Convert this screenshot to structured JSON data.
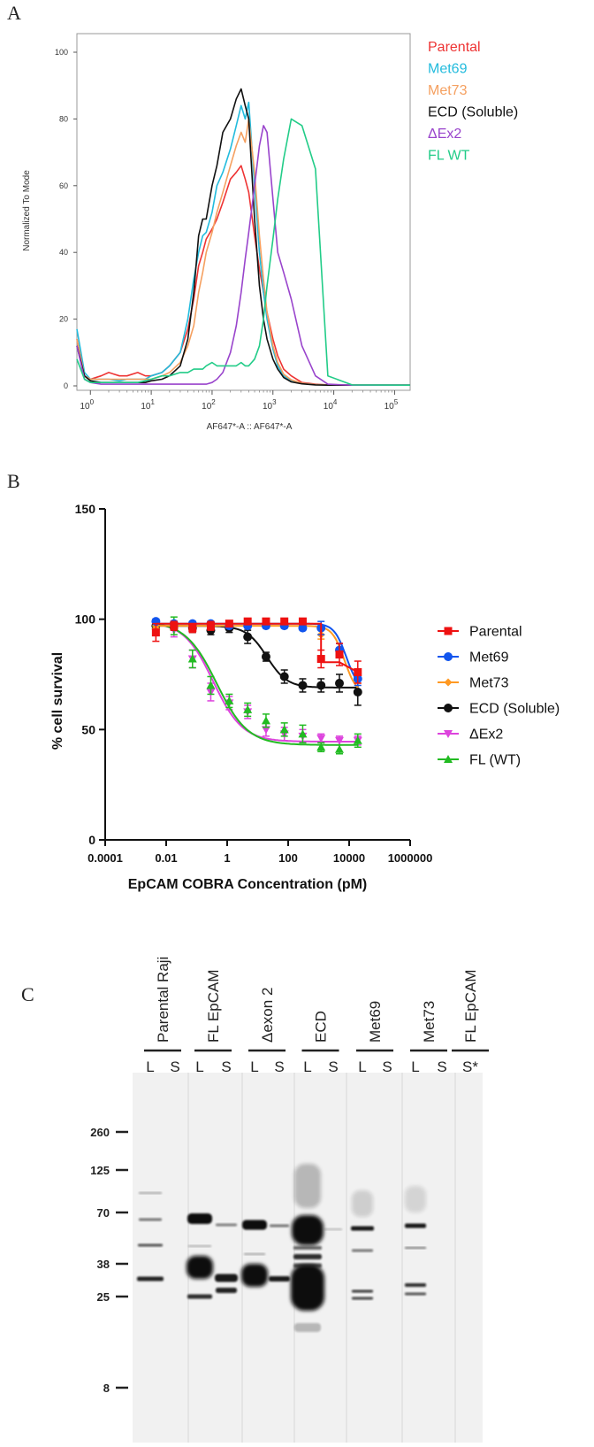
{
  "panel_labels": {
    "a": "A",
    "b": "B",
    "c": "C"
  },
  "chart_data": [
    {
      "type": "line",
      "panel": "A",
      "title": "",
      "xlabel": "AF647*-A :: AF647*-A",
      "ylabel": "Normalized To Mode",
      "xscale": "log",
      "xlim": [
        0.6,
        180000
      ],
      "ylim": [
        0,
        105
      ],
      "xticks": [
        {
          "base": "10",
          "exp": "0",
          "value": 1
        },
        {
          "base": "10",
          "exp": "1",
          "value": 10
        },
        {
          "base": "10",
          "exp": "2",
          "value": 100
        },
        {
          "base": "10",
          "exp": "3",
          "value": 1000
        },
        {
          "base": "10",
          "exp": "4",
          "value": 10000
        },
        {
          "base": "10",
          "exp": "5",
          "value": 100000
        }
      ],
      "yticks": [
        "0",
        "20",
        "40",
        "60",
        "80",
        "100"
      ],
      "legend_position": "right",
      "series": [
        {
          "name": "Parental",
          "color": "#ee3333",
          "x": [
            0.6,
            0.8,
            1,
            1.5,
            2,
            3,
            4,
            6,
            8,
            10,
            15,
            20,
            30,
            40,
            50,
            60,
            70,
            80,
            100,
            120,
            150,
            200,
            250,
            300,
            350,
            400,
            500,
            600,
            700,
            800,
            1000,
            1200,
            1500,
            2000,
            3000,
            5000,
            8000,
            20000,
            180000
          ],
          "y": [
            14,
            3,
            2,
            3,
            4,
            3,
            3,
            4,
            3,
            3,
            4,
            6,
            10,
            17,
            26,
            36,
            40,
            44,
            47,
            50,
            55,
            62,
            64,
            66,
            62,
            58,
            45,
            35,
            28,
            22,
            14,
            9,
            5,
            3,
            1,
            0.5,
            0.3,
            0.2,
            0.2
          ]
        },
        {
          "name": "Met69",
          "color": "#22bbdd",
          "x": [
            0.6,
            0.8,
            1,
            1.5,
            2,
            3,
            4,
            6,
            8,
            10,
            15,
            20,
            30,
            40,
            50,
            60,
            70,
            80,
            100,
            120,
            150,
            200,
            250,
            300,
            350,
            400,
            500,
            600,
            700,
            800,
            1000,
            1200,
            1500,
            2000,
            3000,
            5000,
            8000,
            20000,
            180000
          ],
          "y": [
            17,
            4,
            2,
            2,
            2,
            1.5,
            2,
            2,
            2,
            3,
            4,
            6,
            10,
            20,
            32,
            40,
            45,
            46,
            52,
            60,
            64,
            71,
            78,
            84,
            80,
            85,
            60,
            40,
            28,
            20,
            11,
            6,
            3,
            1.5,
            0.8,
            0.4,
            0.3,
            0.2,
            0.2
          ]
        },
        {
          "name": "Met73",
          "color": "#f5a060",
          "x": [
            0.6,
            0.8,
            1,
            1.5,
            2,
            3,
            4,
            6,
            8,
            10,
            15,
            20,
            30,
            40,
            50,
            60,
            70,
            80,
            100,
            120,
            150,
            200,
            250,
            300,
            350,
            400,
            500,
            600,
            700,
            800,
            1000,
            1200,
            1500,
            2000,
            3000,
            5000,
            8000,
            20000,
            180000
          ],
          "y": [
            14,
            3,
            2,
            2,
            2,
            2,
            2,
            2,
            2,
            2,
            3,
            4,
            7,
            12,
            18,
            28,
            34,
            40,
            46,
            52,
            58,
            66,
            72,
            76,
            73,
            80,
            64,
            45,
            32,
            22,
            12,
            7,
            3.5,
            1.8,
            0.8,
            0.4,
            0.3,
            0.2,
            0.2
          ]
        },
        {
          "name": "ECD (Soluble)",
          "color": "#111111",
          "x": [
            0.6,
            0.8,
            1,
            1.5,
            2,
            3,
            4,
            6,
            8,
            10,
            15,
            20,
            30,
            40,
            50,
            60,
            70,
            80,
            100,
            120,
            150,
            200,
            250,
            300,
            350,
            400,
            500,
            600,
            700,
            800,
            1000,
            1200,
            1500,
            2000,
            3000,
            5000,
            8000,
            20000,
            180000
          ],
          "y": [
            12,
            3,
            1.5,
            1,
            1,
            1,
            1,
            1,
            1,
            1.5,
            2,
            3,
            6,
            14,
            28,
            45,
            50,
            50,
            60,
            66,
            76,
            80,
            86,
            89,
            84,
            80,
            50,
            30,
            20,
            14,
            8,
            5,
            2.5,
            1.2,
            0.6,
            0.3,
            0.2,
            0.2,
            0.2
          ]
        },
        {
          "name": "ΔEx2",
          "color": "#9944cc",
          "x": [
            0.6,
            0.8,
            1,
            1.5,
            2,
            3,
            4,
            6,
            8,
            10,
            15,
            20,
            30,
            40,
            50,
            60,
            70,
            80,
            100,
            120,
            150,
            200,
            250,
            300,
            350,
            400,
            500,
            600,
            700,
            800,
            1000,
            1200,
            1500,
            2000,
            3000,
            5000,
            8000,
            20000,
            180000
          ],
          "y": [
            12,
            2,
            1,
            0.5,
            0.5,
            0.5,
            0.5,
            0.5,
            0.5,
            0.5,
            0.5,
            0.5,
            0.5,
            0.5,
            0.5,
            0.5,
            0.5,
            0.5,
            1,
            2,
            4,
            10,
            18,
            28,
            38,
            46,
            60,
            72,
            78,
            76,
            56,
            40,
            34,
            26,
            12,
            3,
            0.5,
            0.2,
            0.2
          ]
        },
        {
          "name": "FL WT",
          "color": "#22cc88",
          "x": [
            0.6,
            0.8,
            1,
            1.5,
            2,
            3,
            4,
            6,
            8,
            10,
            15,
            20,
            30,
            40,
            50,
            60,
            70,
            80,
            100,
            120,
            150,
            200,
            250,
            300,
            350,
            400,
            500,
            600,
            700,
            800,
            1000,
            1200,
            1500,
            2000,
            3000,
            5000,
            8000,
            20000,
            180000
          ],
          "y": [
            8,
            2,
            1,
            1,
            1,
            1,
            1,
            1,
            1.5,
            2,
            3,
            3,
            4,
            4,
            5,
            5,
            5,
            6,
            7,
            6,
            6,
            6,
            6,
            7,
            6,
            6,
            8,
            12,
            20,
            30,
            44,
            56,
            68,
            80,
            78,
            65,
            3,
            0.3,
            0.2
          ]
        }
      ]
    },
    {
      "type": "line",
      "panel": "B",
      "title": "",
      "xlabel": "EpCAM COBRA Concentration (pM)",
      "ylabel": "% cell survival",
      "xscale": "log",
      "xlim": [
        0.0001,
        1000000
      ],
      "ylim": [
        0,
        150
      ],
      "xticks": [
        "0.0001",
        "0.01",
        "1",
        "100",
        "10000",
        "1000000"
      ],
      "yticks": [
        "0",
        "50",
        "100",
        "150"
      ],
      "legend_position": "right",
      "x": [
        0.0046,
        0.018,
        0.073,
        0.29,
        1.17,
        4.7,
        18.8,
        75,
        300,
        1200,
        4800,
        19200
      ],
      "series": [
        {
          "name": "Parental",
          "color": "#ee1111",
          "marker": "square",
          "values": [
            94,
            97,
            96,
            97,
            98,
            99,
            99,
            99,
            99,
            82,
            84,
            76
          ],
          "errors": [
            4,
            2,
            2,
            2,
            1,
            1,
            1,
            1,
            1,
            4,
            5,
            5
          ],
          "curve_x": [
            0.0046,
            1200,
            1200,
            4800,
            19200
          ],
          "curve_y": [
            98,
            98,
            80.5,
            80.5,
            76
          ]
        },
        {
          "name": "Met69",
          "color": "#1155ee",
          "marker": "circle",
          "values": [
            99,
            98,
            98,
            98,
            97,
            97,
            97,
            97,
            96,
            96,
            86,
            73
          ],
          "errors": [
            1,
            1,
            1,
            1,
            1,
            1,
            1,
            1,
            1,
            3,
            3,
            3
          ]
        },
        {
          "name": "Met73",
          "color": "#ff9922",
          "marker": "diamond",
          "values": [
            97,
            97,
            97,
            97,
            97,
            97,
            97,
            97,
            97,
            93,
            85,
            73
          ],
          "errors": [
            1,
            1,
            1,
            1,
            1,
            1,
            1,
            1,
            1,
            2,
            2,
            2
          ]
        },
        {
          "name": "ECD (Soluble)",
          "color": "#111111",
          "marker": "circle",
          "values": [
            97,
            97,
            96,
            95,
            96,
            92,
            83,
            74,
            70,
            70,
            71,
            67
          ],
          "errors": [
            2,
            2,
            2,
            2,
            2,
            3,
            2,
            3,
            3,
            3,
            4,
            6
          ]
        },
        {
          "name": "ΔEx2",
          "color": "#dd44dd",
          "marker": "triangle-down",
          "values": [
            98,
            95,
            82,
            67,
            62,
            58,
            50,
            48,
            47,
            46,
            45,
            45
          ],
          "errors": [
            2,
            3,
            4,
            4,
            3,
            3,
            3,
            3,
            3,
            2,
            2,
            2
          ]
        },
        {
          "name": "FL (WT)",
          "color": "#22bb22",
          "marker": "triangle-up",
          "values": [
            97,
            97,
            82,
            70,
            63,
            59,
            54,
            50,
            48,
            42,
            41,
            45
          ],
          "errors": [
            3,
            4,
            4,
            4,
            3,
            3,
            3,
            3,
            4,
            2,
            2,
            3
          ]
        }
      ]
    }
  ],
  "blot": {
    "groups": [
      {
        "name": "Parental Raji",
        "lanes": [
          "L",
          "S"
        ]
      },
      {
        "name": "FL EpCAM",
        "lanes": [
          "L",
          "S"
        ]
      },
      {
        "name": "Δexon 2",
        "lanes": [
          "L",
          "S"
        ]
      },
      {
        "name": "ECD",
        "lanes": [
          "L",
          "S"
        ]
      },
      {
        "name": "Met69",
        "lanes": [
          "L",
          "S"
        ]
      },
      {
        "name": "Met73",
        "lanes": [
          "L",
          "S"
        ]
      },
      {
        "name": "FL EpCAM",
        "lanes": [
          "S*"
        ]
      }
    ],
    "markers": [
      {
        "label": "260",
        "kda": 260
      },
      {
        "label": "125",
        "kda": 125
      },
      {
        "label": "70",
        "kda": 70
      },
      {
        "label": "38",
        "kda": 38
      },
      {
        "label": "25",
        "kda": 25
      },
      {
        "label": "8",
        "kda": 8
      }
    ]
  }
}
